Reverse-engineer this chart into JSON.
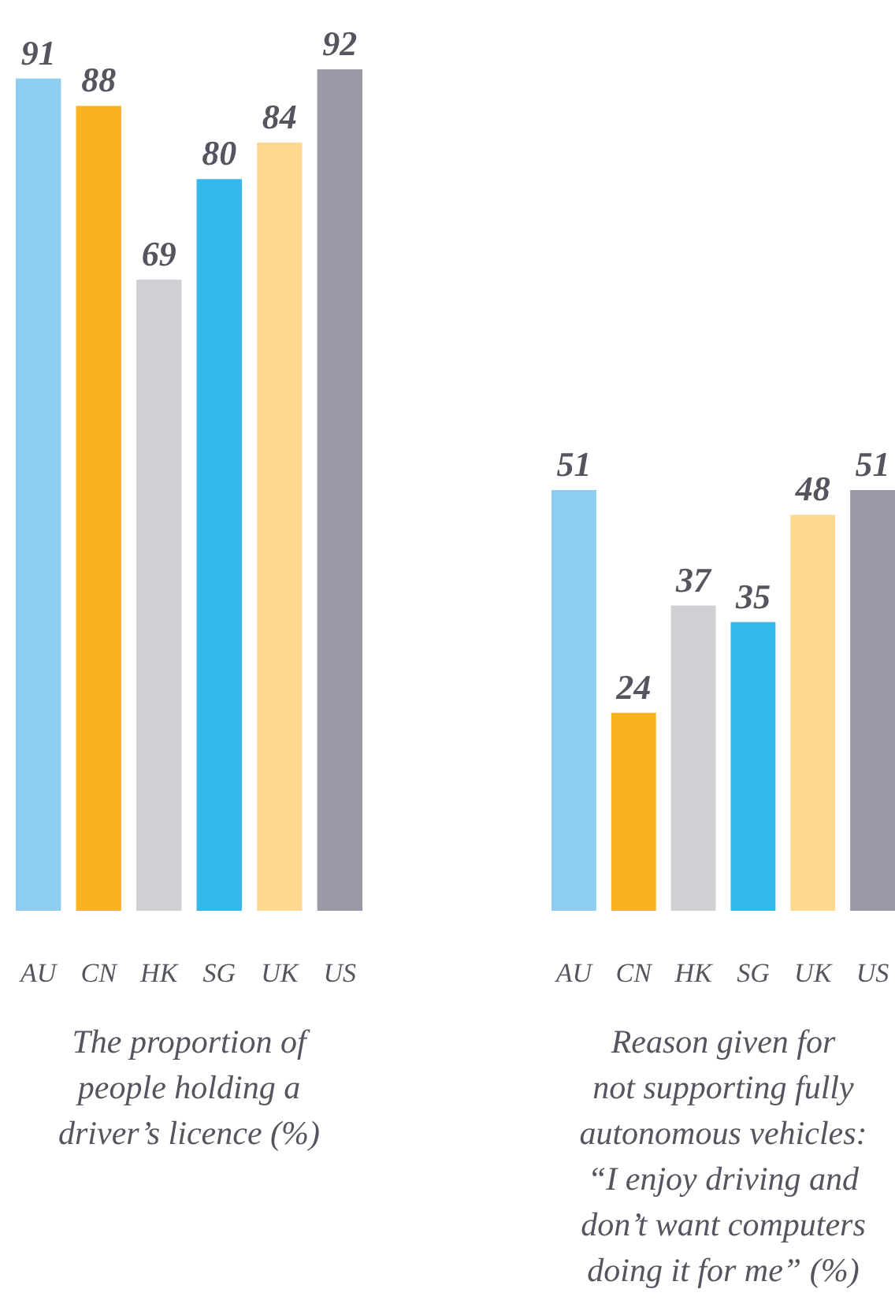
{
  "chart_data": [
    {
      "type": "bar",
      "xlabel": "The proportion of\npeople holding a\ndriver’s licence (%)",
      "categories": [
        "AU",
        "CN",
        "HK",
        "SG",
        "UK",
        "US"
      ],
      "values": [
        91,
        88,
        69,
        80,
        84,
        92
      ],
      "colors": [
        "#8ccdf0",
        "#fbb21f",
        "#cfcfd4",
        "#35b9ea",
        "#fed88f",
        "#9a9aa6"
      ],
      "data_labels": true
    },
    {
      "type": "bar",
      "xlabel": "Reason given for\nnot supporting fully\nautonomous vehicles:\n“I enjoy driving and\ndon’t want computers\ndoing it for me” (%)",
      "categories": [
        "AU",
        "CN",
        "HK",
        "SG",
        "UK",
        "US"
      ],
      "values": [
        51,
        24,
        37,
        35,
        48,
        51
      ],
      "colors": [
        "#8ccdf0",
        "#fbb21f",
        "#cfcfd4",
        "#35b9ea",
        "#fed88f",
        "#9a9aa6"
      ],
      "data_labels": true
    }
  ]
}
